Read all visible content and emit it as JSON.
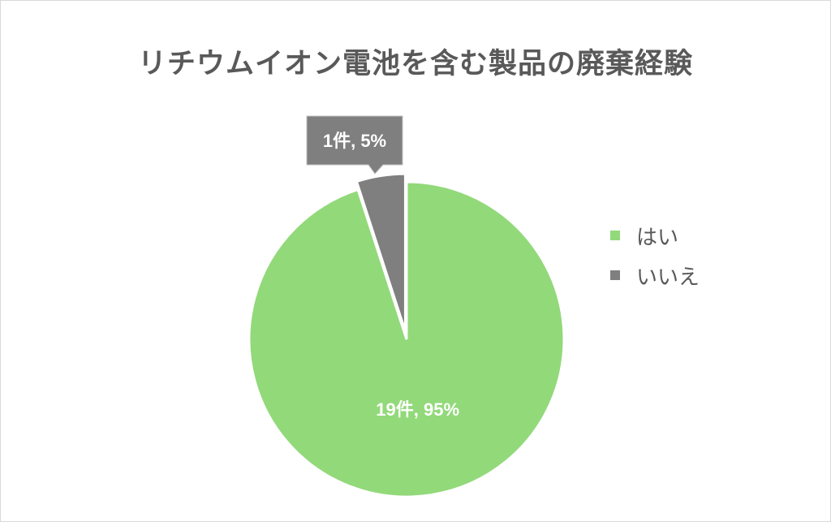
{
  "chart_data": {
    "type": "pie",
    "title": "リチウムイオン電池を含む製品の廃棄経験",
    "categories": [
      "はい",
      "いいえ"
    ],
    "values": [
      19,
      1
    ],
    "percents": [
      95,
      5
    ],
    "data_labels": [
      "19件, 95%",
      "1件, 5%"
    ],
    "colors": [
      "#92d97a",
      "#7f7f7f"
    ],
    "legend_position": "right",
    "exploded_slice": "いいえ"
  }
}
